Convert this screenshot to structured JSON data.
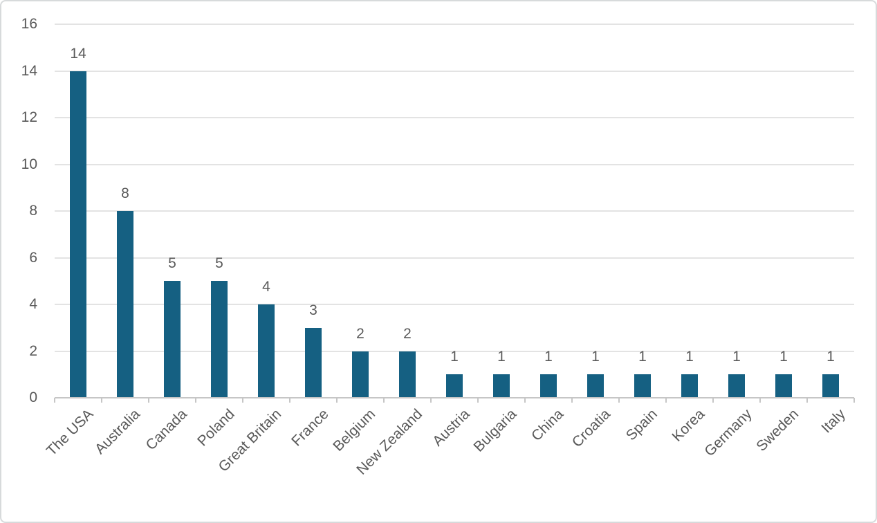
{
  "window": {
    "background": "#ffffff",
    "border_color": "#d7dadb"
  },
  "chart_data": {
    "type": "bar",
    "title": "",
    "xlabel": "",
    "ylabel": "",
    "categories": [
      "The USA",
      "Australia",
      "Canada",
      "Poland",
      "Great Britain",
      "France",
      "Belgium",
      "New Zealand",
      "Austria",
      "Bulgaria",
      "China",
      "Croatia",
      "Spain",
      "Korea",
      "Germany",
      "Sweden",
      "Italy"
    ],
    "values": [
      14,
      8,
      5,
      5,
      4,
      3,
      2,
      2,
      1,
      1,
      1,
      1,
      1,
      1,
      1,
      1,
      1
    ],
    "ylim": [
      0,
      16
    ],
    "yticks": [
      0,
      2,
      4,
      6,
      8,
      10,
      12,
      14,
      16
    ],
    "grid": true,
    "legend": "none",
    "data_labels": true,
    "x_label_rotation_deg": 45,
    "colors": {
      "bar": "#156082",
      "text": "#595959",
      "gridline": "#e3e3e3",
      "axis": "#c6c6c6"
    }
  }
}
